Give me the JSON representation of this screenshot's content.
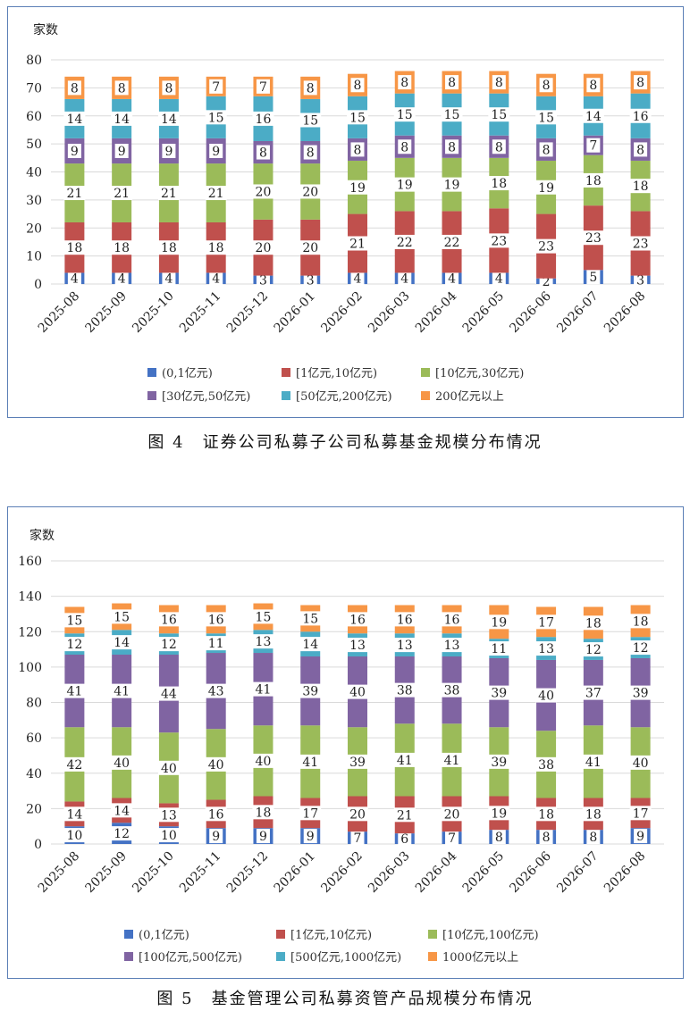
{
  "categories": [
    "2025-08",
    "2025-09",
    "2025-10",
    "2025-11",
    "2025-12",
    "2026-01",
    "2026-02",
    "2026-03",
    "2026-04",
    "2026-05",
    "2026-06",
    "2026-07",
    "2026-08"
  ],
  "chart_data": [
    {
      "type": "bar",
      "stacked": true,
      "ylabel": "家数",
      "ylim": [
        0,
        80
      ],
      "yticks": [
        0,
        10,
        20,
        30,
        40,
        50,
        60,
        70,
        80
      ],
      "categories": [
        "2025-08",
        "2025-09",
        "2025-10",
        "2025-11",
        "2025-12",
        "2026-01",
        "2026-02",
        "2026-03",
        "2026-04",
        "2026-05",
        "2026-06",
        "2026-07",
        "2026-08"
      ],
      "series": [
        {
          "name": "(0,1亿元)",
          "color": "#4472c4",
          "values": [
            4,
            4,
            4,
            4,
            3,
            3,
            4,
            4,
            4,
            4,
            2,
            5,
            3
          ]
        },
        {
          "name": "[1亿元,10亿元)",
          "color": "#c0504d",
          "values": [
            18,
            18,
            18,
            18,
            20,
            20,
            21,
            22,
            22,
            23,
            23,
            23,
            23
          ]
        },
        {
          "name": "[10亿元,30亿元)",
          "color": "#9bbb59",
          "values": [
            21,
            21,
            21,
            21,
            20,
            20,
            19,
            19,
            19,
            18,
            19,
            18,
            18
          ]
        },
        {
          "name": "[30亿元,50亿元)",
          "color": "#8064a2",
          "values": [
            9,
            9,
            9,
            9,
            8,
            8,
            8,
            8,
            8,
            8,
            8,
            7,
            8
          ]
        },
        {
          "name": "[50亿元,200亿元)",
          "color": "#4bacc6",
          "values": [
            14,
            14,
            14,
            15,
            16,
            15,
            15,
            15,
            15,
            15,
            15,
            14,
            16
          ]
        },
        {
          "name": "200亿元以上",
          "color": "#f79646",
          "values": [
            8,
            8,
            8,
            7,
            7,
            8,
            8,
            8,
            8,
            8,
            8,
            8,
            8
          ]
        }
      ],
      "caption": "图 4　证券公司私募子公司私募基金规模分布情况"
    },
    {
      "type": "bar",
      "stacked": true,
      "ylabel": "家数",
      "ylim": [
        0,
        160
      ],
      "yticks": [
        0,
        20,
        40,
        60,
        80,
        100,
        120,
        140,
        160
      ],
      "categories": [
        "2025-08",
        "2025-09",
        "2025-10",
        "2025-11",
        "2025-12",
        "2026-01",
        "2026-02",
        "2026-03",
        "2026-04",
        "2026-05",
        "2026-06",
        "2026-07",
        "2026-08"
      ],
      "series": [
        {
          "name": "(0,1亿元)",
          "color": "#4472c4",
          "values": [
            10,
            12,
            10,
            9,
            9,
            9,
            7,
            6,
            7,
            8,
            8,
            8,
            9
          ]
        },
        {
          "name": "[1亿元,10亿元)",
          "color": "#c0504d",
          "values": [
            14,
            14,
            13,
            16,
            18,
            17,
            20,
            21,
            20,
            19,
            18,
            18,
            17
          ]
        },
        {
          "name": "[10亿元,100亿元)",
          "color": "#9bbb59",
          "values": [
            42,
            40,
            40,
            40,
            40,
            41,
            39,
            41,
            41,
            39,
            38,
            41,
            40
          ]
        },
        {
          "name": "[100亿元,500亿元)",
          "color": "#8064a2",
          "values": [
            41,
            41,
            44,
            43,
            41,
            39,
            40,
            38,
            38,
            39,
            40,
            37,
            39
          ]
        },
        {
          "name": "[500亿元,1000亿元)",
          "color": "#4bacc6",
          "values": [
            12,
            14,
            12,
            11,
            13,
            14,
            13,
            13,
            13,
            11,
            13,
            12,
            12
          ]
        },
        {
          "name": "1000亿元以上",
          "color": "#f79646",
          "values": [
            15,
            15,
            16,
            16,
            15,
            15,
            16,
            16,
            16,
            19,
            17,
            18,
            18
          ]
        }
      ],
      "caption": "图 5　基金管理公司私募资管产品规模分布情况"
    }
  ]
}
